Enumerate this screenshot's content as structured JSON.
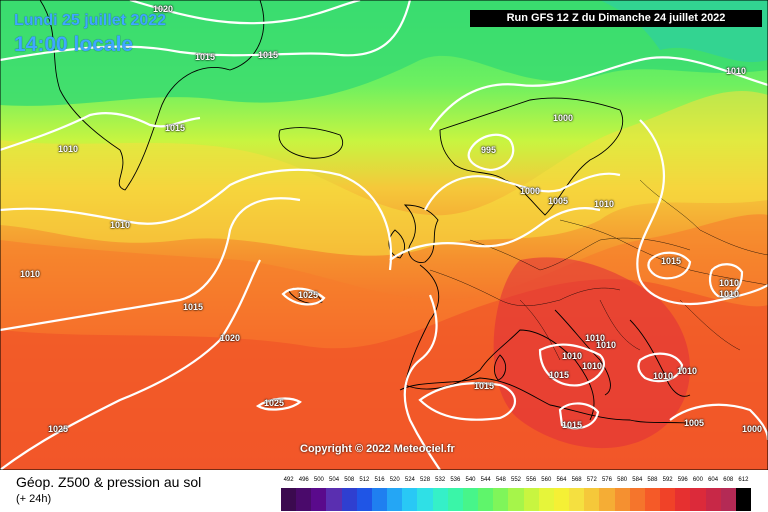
{
  "header": {
    "date_label": "Lundi 25 juillet 2022",
    "hour_label": "14:00 locale",
    "run_label": "Run GFS 12 Z du Dimanche 24 juillet 2022"
  },
  "copyright": "Copyright © 2022 Meteociel.fr",
  "footer": {
    "title": "Géop. Z500 & pression au sol",
    "subtitle": "(+ 24h)"
  },
  "legend": {
    "values": [
      "492",
      "496",
      "500",
      "504",
      "508",
      "512",
      "516",
      "520",
      "524",
      "528",
      "532",
      "536",
      "540",
      "544",
      "548",
      "552",
      "556",
      "560",
      "564",
      "568",
      "572",
      "576",
      "580",
      "584",
      "588",
      "592",
      "596",
      "600",
      "604",
      "608",
      "612"
    ],
    "colors": [
      "#3b0a4f",
      "#4a0a6b",
      "#5a0a8c",
      "#5a2fb0",
      "#2f3fd0",
      "#1f55e6",
      "#1f7ff0",
      "#24a6f5",
      "#29c8f5",
      "#2fe0e6",
      "#35f0c8",
      "#3af5a8",
      "#47f58a",
      "#5ff56b",
      "#7ff55a",
      "#a6f54a",
      "#c8f540",
      "#e6f53a",
      "#f5f035",
      "#f5e040",
      "#f5c83a",
      "#f5ad35",
      "#f59030",
      "#f5752c",
      "#f55a28",
      "#f04228",
      "#e63030",
      "#dc2a3a",
      "#c82847",
      "#b42a55",
      "#000000"
    ]
  },
  "isobars": [
    {
      "id": "1020-top",
      "text": "1020"
    },
    {
      "id": "1015-greenland",
      "text": "1015"
    },
    {
      "id": "1015-iceland-a",
      "text": "1015"
    },
    {
      "id": "1015-iceland-b",
      "text": "1015"
    },
    {
      "id": "1010-greenland",
      "text": "1010"
    },
    {
      "id": "1010-atlantic",
      "text": "1010"
    },
    {
      "id": "1010-west",
      "text": "1010"
    },
    {
      "id": "1000-scand",
      "text": "1000"
    },
    {
      "id": "995-low",
      "text": "995"
    },
    {
      "id": "1000-north-sea",
      "text": "1000"
    },
    {
      "id": "1005-baltic",
      "text": "1005"
    },
    {
      "id": "1010-baltic",
      "text": "1010"
    },
    {
      "id": "1010-ne",
      "text": "1010"
    },
    {
      "id": "1015-russia",
      "text": "1015"
    },
    {
      "id": "1010-east-a",
      "text": "1010"
    },
    {
      "id": "1010-east-b",
      "text": "1010"
    },
    {
      "id": "1015-mid",
      "text": "1015"
    },
    {
      "id": "1025-azores",
      "text": "1025"
    },
    {
      "id": "1020-mid",
      "text": "1020"
    },
    {
      "id": "1025-south",
      "text": "1025"
    },
    {
      "id": "1025-sw",
      "text": "1025"
    },
    {
      "id": "1010-med-a",
      "text": "1010"
    },
    {
      "id": "1010-med-b",
      "text": "1010"
    },
    {
      "id": "1010-med-c",
      "text": "1010"
    },
    {
      "id": "1010-med-d",
      "text": "1010"
    },
    {
      "id": "1015-med",
      "text": "1015"
    },
    {
      "id": "1015-sardinia",
      "text": "1015"
    },
    {
      "id": "1015-libya",
      "text": "1015"
    },
    {
      "id": "1010-greece",
      "text": "1010"
    },
    {
      "id": "1010-turkey",
      "text": "1010"
    },
    {
      "id": "1005-se",
      "text": "1005"
    },
    {
      "id": "1000-se",
      "text": "1000"
    }
  ]
}
